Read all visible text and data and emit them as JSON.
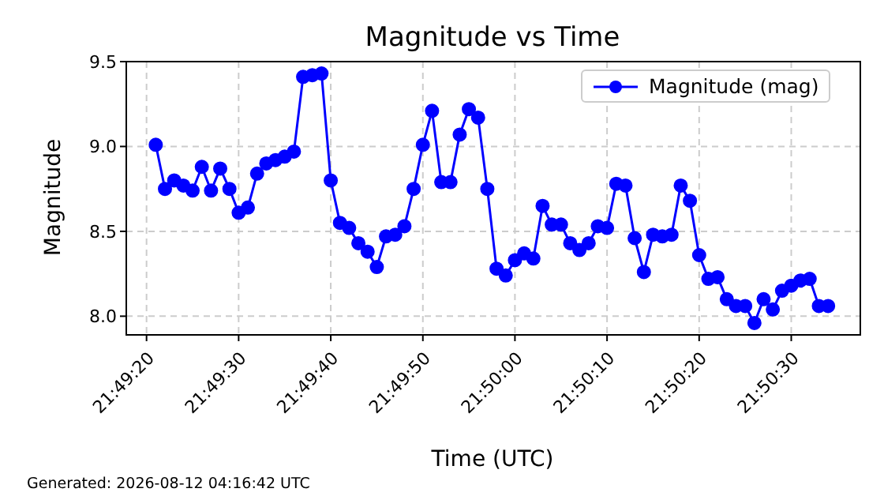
{
  "chart_data": {
    "type": "line",
    "title": "Magnitude vs Time",
    "xlabel": "Time (UTC)",
    "ylabel": "Magnitude",
    "annotations": [
      "Generated: 2026-08-12 04:16:42 UTC"
    ],
    "x": [
      21.8225,
      21.822778,
      21.823056,
      21.823333,
      21.823611,
      21.823889,
      21.824167,
      21.824444,
      21.824722,
      21.825,
      21.825278,
      21.825556,
      21.825833,
      21.826111,
      21.826389,
      21.826667,
      21.826944,
      21.827222,
      21.8275,
      21.827778,
      21.828056,
      21.828333,
      21.828611,
      21.828889,
      21.829167,
      21.829444,
      21.829722,
      21.83,
      21.830278,
      21.830556,
      21.830833,
      21.831111,
      21.831389,
      21.831667,
      21.831944,
      21.832222,
      21.8325,
      21.832778,
      21.833056,
      21.833333,
      21.833611,
      21.833889,
      21.834167,
      21.834444,
      21.834722,
      21.835,
      21.835278,
      21.835556,
      21.835833,
      21.836111,
      21.836389,
      21.836667,
      21.836944,
      21.837222,
      21.8375,
      21.837778,
      21.838056,
      21.838333,
      21.838611,
      21.838889,
      21.839167,
      21.839444,
      21.839722,
      21.84,
      21.840278,
      21.840556,
      21.840833,
      21.841111,
      21.841389,
      21.841667,
      21.841944,
      21.842222,
      21.8425,
      21.842778
    ],
    "series": [
      {
        "name": "Magnitude (mag)",
        "color": "#0000ff",
        "values": [
          9.01,
          8.75,
          8.8,
          8.77,
          8.74,
          8.88,
          8.74,
          8.87,
          8.75,
          8.61,
          8.64,
          8.84,
          8.9,
          8.92,
          8.94,
          8.97,
          9.41,
          9.42,
          9.43,
          8.8,
          8.55,
          8.52,
          8.43,
          8.38,
          8.29,
          8.47,
          8.48,
          8.53,
          8.75,
          9.01,
          9.21,
          8.79,
          8.79,
          9.07,
          9.22,
          9.17,
          8.75,
          8.28,
          8.24,
          8.33,
          8.37,
          8.34,
          8.65,
          8.54,
          8.54,
          8.43,
          8.39,
          8.43,
          8.53,
          8.52,
          8.78,
          8.77,
          8.46,
          8.26,
          8.48,
          8.47,
          8.48,
          8.77,
          8.68,
          8.36,
          8.22,
          8.23,
          8.1,
          8.06,
          8.06,
          7.96,
          8.1,
          8.04,
          8.15,
          8.18,
          8.21,
          8.22,
          8.06,
          8.06
        ]
      }
    ],
    "xlim": [
      21.821611,
      21.84375
    ],
    "xticks": [
      {
        "value": 21.822222,
        "label": "21:49:20"
      },
      {
        "value": 21.825,
        "label": "21:49:30"
      },
      {
        "value": 21.827778,
        "label": "21:49:40"
      },
      {
        "value": 21.830556,
        "label": "21:49:50"
      },
      {
        "value": 21.833333,
        "label": "21:50:00"
      },
      {
        "value": 21.836111,
        "label": "21:50:10"
      },
      {
        "value": 21.838889,
        "label": "21:50:20"
      },
      {
        "value": 21.841667,
        "label": "21:50:30"
      }
    ],
    "ylim": [
      7.89,
      9.5
    ],
    "yticks": [
      {
        "value": 8,
        "label": "8.0"
      },
      8.5,
      {
        "value": 9,
        "label": "9.0"
      },
      9.5
    ],
    "grid": true,
    "legend": "top right",
    "marker": "circle",
    "line_style": "solid"
  }
}
